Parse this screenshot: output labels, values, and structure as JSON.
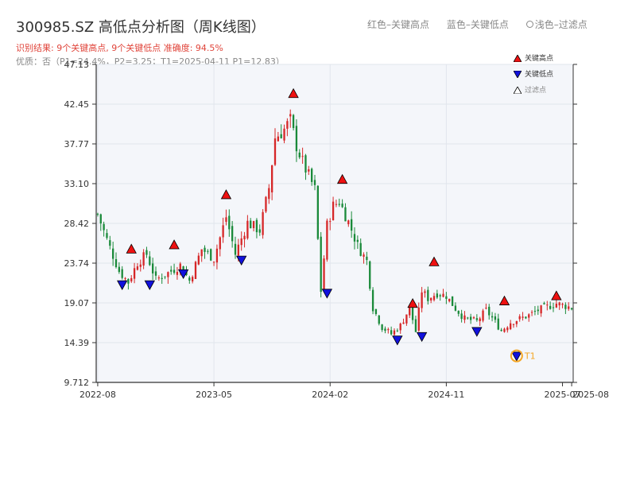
{
  "header": {
    "title": "300985.SZ 高低点分析图（周K线图）",
    "subtitle1": "识别结果: 9个关键高点, 9个关键低点  准确度: 94.5%",
    "subtitle2": "优质：否（P1=24.4%，P2=3.25；T1=2025-04-11 P1=12.83）",
    "legend_top": [
      "红色–关键高点",
      "蓝色–关键低点",
      "浅色–过滤点"
    ]
  },
  "colors": {
    "up": "#d62728",
    "down": "#1a8a3a",
    "high": "#ee1111",
    "low": "#1111dd",
    "t1": "#f5a623"
  },
  "chart_data": {
    "type": "candlestick",
    "title": "300985.SZ 高低点分析图（周K线图）",
    "x_ticks": [
      "2022-08",
      "2023-05",
      "2024-02",
      "2024-11",
      "2025-07",
      "2025-08"
    ],
    "y_ticks": [
      "47.13",
      "42.45",
      "37.77",
      "33.10",
      "28.42",
      "23.74",
      "19.07",
      "14.39",
      "9.712"
    ],
    "ylim": [
      9.712,
      47.13
    ],
    "legend": [
      "关键高点",
      "关键低点",
      "过滤点"
    ],
    "t1_label": "T1",
    "weeks": 156,
    "close_anchors": [
      [
        0,
        29.5
      ],
      [
        3,
        26.5
      ],
      [
        7,
        22.8
      ],
      [
        10,
        21.5
      ],
      [
        13,
        23.8
      ],
      [
        16,
        24.8
      ],
      [
        19,
        21.8
      ],
      [
        24,
        22.8
      ],
      [
        27,
        23.5
      ],
      [
        30,
        21.7
      ],
      [
        34,
        25.4
      ],
      [
        38,
        24.3
      ],
      [
        42,
        29.2
      ],
      [
        45,
        24.8
      ],
      [
        49,
        28.5
      ],
      [
        53,
        27.6
      ],
      [
        56,
        32.6
      ],
      [
        58,
        38.5
      ],
      [
        61,
        39.5
      ],
      [
        63,
        40.5
      ],
      [
        65,
        37.6
      ],
      [
        67,
        35.6
      ],
      [
        69,
        34.0
      ],
      [
        71,
        32.4
      ],
      [
        73,
        20.5
      ],
      [
        75,
        28.2
      ],
      [
        77,
        30.5
      ],
      [
        79,
        31.0
      ],
      [
        82,
        28.6
      ],
      [
        85,
        25.8
      ],
      [
        88,
        24.0
      ],
      [
        90,
        18.5
      ],
      [
        93,
        16.2
      ],
      [
        96,
        15.4
      ],
      [
        99,
        16.4
      ],
      [
        102,
        18.5
      ],
      [
        104,
        15.7
      ],
      [
        106,
        20.5
      ],
      [
        108,
        19.6
      ],
      [
        111,
        20.2
      ],
      [
        114,
        19.9
      ],
      [
        117,
        18.4
      ],
      [
        120,
        17.2
      ],
      [
        124,
        16.9
      ],
      [
        127,
        18.2
      ],
      [
        129,
        17.3
      ],
      [
        132,
        15.8
      ],
      [
        135,
        16.8
      ],
      [
        138,
        17.2
      ],
      [
        141,
        17.6
      ],
      [
        144,
        18.2
      ],
      [
        147,
        18.6
      ],
      [
        150,
        19.0
      ],
      [
        155,
        18.5
      ]
    ],
    "key_highs": [
      {
        "i": 11,
        "v": 25.3
      },
      {
        "i": 25,
        "v": 25.8
      },
      {
        "i": 42,
        "v": 31.7
      },
      {
        "i": 64,
        "v": 43.6
      },
      {
        "i": 80,
        "v": 33.5
      },
      {
        "i": 103,
        "v": 18.9
      },
      {
        "i": 110,
        "v": 23.8
      },
      {
        "i": 133,
        "v": 19.2
      },
      {
        "i": 150,
        "v": 19.8
      }
    ],
    "key_lows": [
      {
        "i": 8,
        "v": 21.3
      },
      {
        "i": 17,
        "v": 21.3
      },
      {
        "i": 28,
        "v": 22.6
      },
      {
        "i": 47,
        "v": 24.2
      },
      {
        "i": 75,
        "v": 20.3
      },
      {
        "i": 98,
        "v": 14.8
      },
      {
        "i": 106,
        "v": 15.2
      },
      {
        "i": 124,
        "v": 15.8
      },
      {
        "i": 137,
        "v": 12.9
      }
    ],
    "t1": {
      "i": 137,
      "v": 12.83
    }
  }
}
